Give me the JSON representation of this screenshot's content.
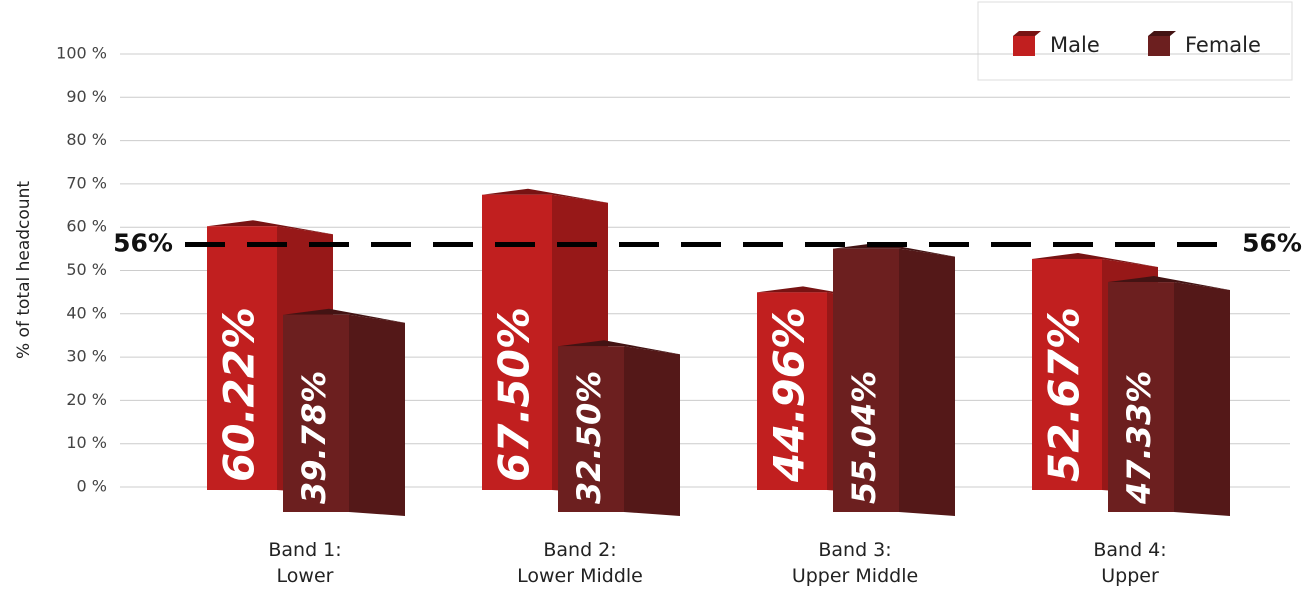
{
  "chart_data": {
    "type": "bar",
    "y_axis_label": "% of total headcount",
    "categories": [
      "Band 1:\nLower",
      "Band 2:\nLower Middle",
      "Band 3:\nUpper Middle",
      "Band 4:\nUpper"
    ],
    "series": [
      {
        "name": "Male",
        "color": "#c11f1f",
        "values": [
          60.22,
          67.5,
          44.96,
          52.67
        ],
        "value_labels": [
          "60.22%",
          "67.50%",
          "44.96%",
          "52.67%"
        ]
      },
      {
        "name": "Female",
        "color": "#6c1f1f",
        "values": [
          39.78,
          32.5,
          55.04,
          47.33
        ],
        "value_labels": [
          "39.78%",
          "32.50%",
          "55.04%",
          "47.33%"
        ]
      }
    ],
    "ylim": [
      0,
      100
    ],
    "yticks": [
      {
        "value": 0,
        "label": "0 %"
      },
      {
        "value": 10,
        "label": "10 %"
      },
      {
        "value": 20,
        "label": "20 %"
      },
      {
        "value": 30,
        "label": "30 %"
      },
      {
        "value": 40,
        "label": "40 %"
      },
      {
        "value": 50,
        "label": "50 %"
      },
      {
        "value": 60,
        "label": "60 %"
      },
      {
        "value": 70,
        "label": "70 %"
      },
      {
        "value": 80,
        "label": "80 %"
      },
      {
        "value": 90,
        "label": "90 %"
      },
      {
        "value": 100,
        "label": "100 %"
      }
    ],
    "grid": true,
    "legend": "top-right",
    "reference_line": {
      "value": 56,
      "label": "56%"
    }
  }
}
